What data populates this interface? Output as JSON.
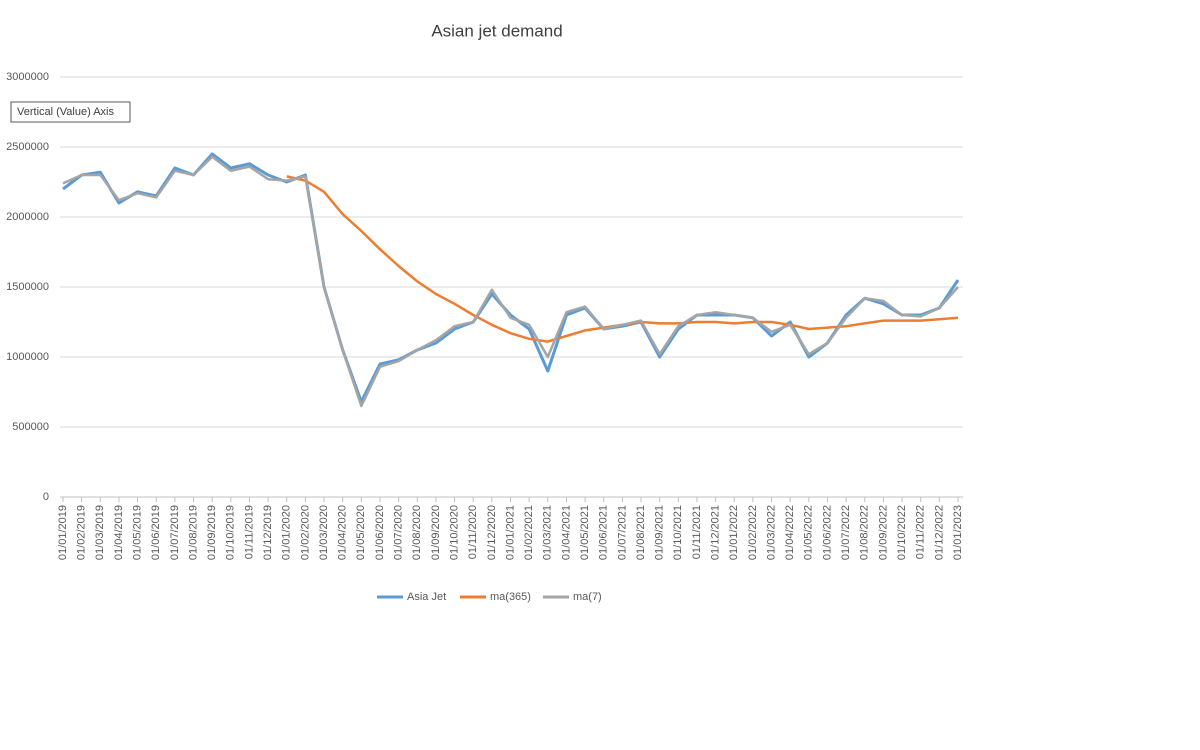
{
  "chart_data": {
    "type": "line",
    "title": "Asian jet demand",
    "tooltip": "Vertical (Value) Axis",
    "categories": [
      "01/01/2019",
      "01/02/2019",
      "01/03/2019",
      "01/04/2019",
      "01/05/2019",
      "01/06/2019",
      "01/07/2019",
      "01/08/2019",
      "01/09/2019",
      "01/10/2019",
      "01/11/2019",
      "01/12/2019",
      "01/01/2020",
      "01/02/2020",
      "01/03/2020",
      "01/04/2020",
      "01/05/2020",
      "01/06/2020",
      "01/07/2020",
      "01/08/2020",
      "01/09/2020",
      "01/10/2020",
      "01/11/2020",
      "01/12/2020",
      "01/01/2021",
      "01/02/2021",
      "01/03/2021",
      "01/04/2021",
      "01/05/2021",
      "01/06/2021",
      "01/07/2021",
      "01/08/2021",
      "01/09/2021",
      "01/10/2021",
      "01/11/2021",
      "01/12/2021",
      "01/01/2022",
      "01/02/2022",
      "01/03/2022",
      "01/04/2022",
      "01/05/2022",
      "01/06/2022",
      "01/07/2022",
      "01/08/2022",
      "01/09/2022",
      "01/10/2022",
      "01/11/2022",
      "01/12/2022",
      "01/01/2023"
    ],
    "series": [
      {
        "name": "Asia Jet",
        "color": "#5b9bd5",
        "width": 3,
        "values": [
          2200000,
          2300000,
          2320000,
          2100000,
          2180000,
          2150000,
          2350000,
          2300000,
          2450000,
          2350000,
          2380000,
          2300000,
          2250000,
          2300000,
          1500000,
          1050000,
          680000,
          950000,
          980000,
          1050000,
          1100000,
          1200000,
          1250000,
          1450000,
          1300000,
          1200000,
          900000,
          1300000,
          1350000,
          1200000,
          1220000,
          1250000,
          1000000,
          1200000,
          1300000,
          1300000,
          1300000,
          1280000,
          1150000,
          1250000,
          1000000,
          1100000,
          1300000,
          1420000,
          1380000,
          1300000,
          1300000,
          1350000,
          1550000
        ]
      },
      {
        "name": "ma(365)",
        "color": "#ed7d31",
        "width": 2.5,
        "values": [
          null,
          null,
          null,
          null,
          null,
          null,
          null,
          null,
          null,
          null,
          null,
          null,
          2290000,
          2260000,
          2180000,
          2020000,
          1900000,
          1770000,
          1650000,
          1540000,
          1450000,
          1380000,
          1300000,
          1230000,
          1170000,
          1130000,
          1110000,
          1150000,
          1190000,
          1210000,
          1230000,
          1250000,
          1240000,
          1240000,
          1250000,
          1250000,
          1240000,
          1250000,
          1250000,
          1230000,
          1200000,
          1210000,
          1220000,
          1240000,
          1260000,
          1260000,
          1260000,
          1270000,
          1280000
        ]
      },
      {
        "name": "ma(7)",
        "color": "#a5a5a5",
        "width": 2.5,
        "values": [
          2240000,
          2300000,
          2300000,
          2120000,
          2170000,
          2140000,
          2330000,
          2300000,
          2430000,
          2330000,
          2360000,
          2270000,
          2260000,
          2290000,
          1500000,
          1050000,
          650000,
          930000,
          970000,
          1050000,
          1120000,
          1220000,
          1250000,
          1480000,
          1280000,
          1230000,
          1000000,
          1320000,
          1360000,
          1200000,
          1230000,
          1260000,
          1020000,
          1220000,
          1300000,
          1320000,
          1300000,
          1280000,
          1180000,
          1230000,
          1020000,
          1100000,
          1280000,
          1420000,
          1400000,
          1300000,
          1290000,
          1350000,
          1500000
        ]
      }
    ],
    "ylim": [
      0,
      3000000
    ],
    "yticks": [
      0,
      500000,
      1000000,
      1500000,
      2000000,
      2500000,
      3000000
    ],
    "grid": true,
    "legend": "bottom"
  }
}
